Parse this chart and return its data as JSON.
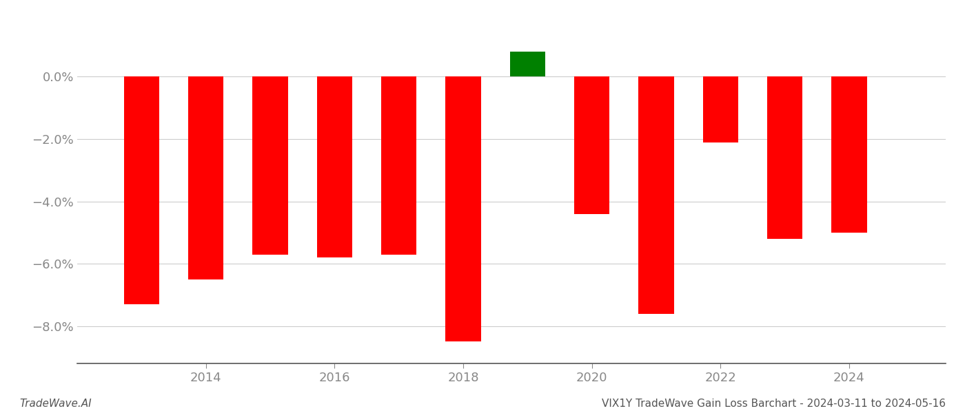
{
  "years": [
    2013,
    2014,
    2015,
    2016,
    2017,
    2018,
    2019,
    2020,
    2021,
    2022,
    2023,
    2024
  ],
  "values": [
    -0.073,
    -0.065,
    -0.057,
    -0.058,
    -0.057,
    -0.085,
    0.008,
    -0.044,
    -0.076,
    -0.021,
    -0.052,
    -0.05
  ],
  "colors": [
    "#ff0000",
    "#ff0000",
    "#ff0000",
    "#ff0000",
    "#ff0000",
    "#ff0000",
    "#008000",
    "#ff0000",
    "#ff0000",
    "#ff0000",
    "#ff0000",
    "#ff0000"
  ],
  "ylim": [
    -0.092,
    0.018
  ],
  "yticks": [
    0.0,
    -0.02,
    -0.04,
    -0.06,
    -0.08
  ],
  "xlim": [
    2012.0,
    2025.5
  ],
  "xlabel": "",
  "ylabel": "",
  "footer_left": "TradeWave.AI",
  "footer_right": "VIX1Y TradeWave Gain Loss Barchart - 2024-03-11 to 2024-05-16",
  "bar_width": 0.55,
  "background_color": "#ffffff",
  "grid_color": "#cccccc",
  "axis_color": "#555555",
  "text_color": "#333333",
  "tick_label_color": "#888888",
  "footer_fontsize": 11,
  "tick_fontsize": 13
}
